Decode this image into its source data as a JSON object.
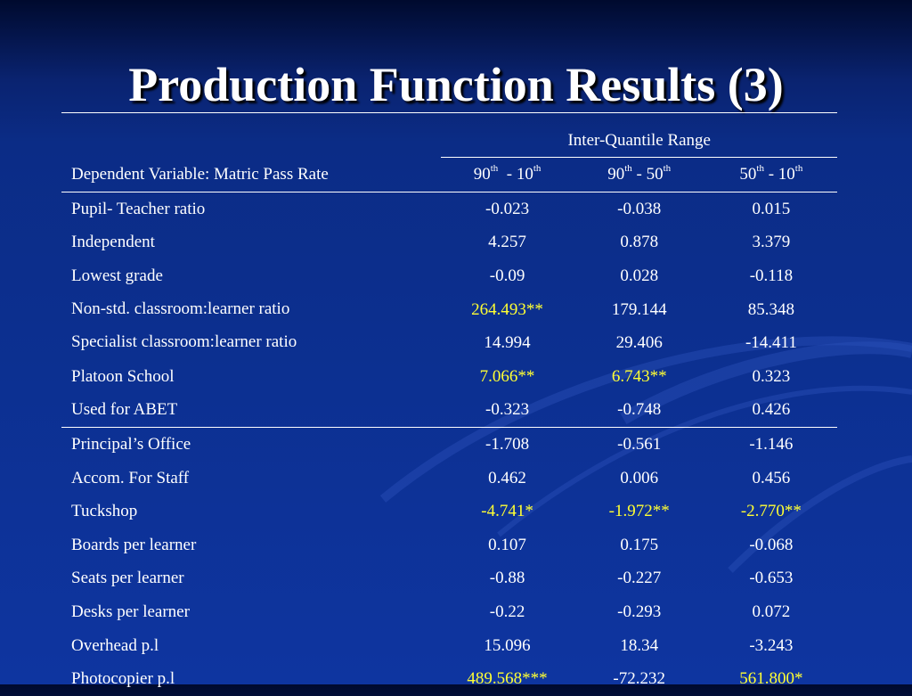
{
  "slide": {
    "title": "Production Function Results (3)"
  },
  "table": {
    "group_header": "Inter-Quantile Range",
    "dependent_label": "Dependent Variable: Matric Pass Rate",
    "columns": [
      {
        "a": "90",
        "a_sup": "th",
        "b": "10",
        "b_sup": "th"
      },
      {
        "a": "90",
        "a_sup": "th",
        "b": "50",
        "b_sup": "th"
      },
      {
        "a": "50",
        "a_sup": "th",
        "b": "10",
        "b_sup": "th"
      }
    ],
    "rows": [
      {
        "label": "Pupil- Teacher ratio",
        "values": [
          "-0.023",
          "-0.038",
          "0.015"
        ]
      },
      {
        "label": "Independent",
        "values": [
          "4.257",
          "0.878",
          "3.379"
        ]
      },
      {
        "label": "Lowest grade",
        "values": [
          "-0.09",
          "0.028",
          "-0.118"
        ]
      },
      {
        "label": "Non-std. classroom:learner ratio",
        "values": [
          "264.493**",
          "179.144",
          "85.348"
        ]
      },
      {
        "label": "Specialist classroom:learner ratio",
        "values": [
          "14.994",
          "29.406",
          "-14.411"
        ]
      },
      {
        "label": "Platoon School",
        "values": [
          "7.066**",
          "6.743**",
          "0.323"
        ]
      },
      {
        "label": "Used for ABET",
        "values": [
          "-0.323",
          "-0.748",
          "0.426"
        ]
      },
      {
        "label": "Principal’s Office",
        "values": [
          "-1.708",
          "-0.561",
          "-1.146"
        ]
      },
      {
        "label": "Accom. For Staff",
        "values": [
          "0.462",
          "0.006",
          "0.456"
        ]
      },
      {
        "label": "Tuckshop",
        "values": [
          "-4.741*",
          "-1.972**",
          "-2.770**"
        ]
      },
      {
        "label": "Boards per learner",
        "values": [
          "0.107",
          "0.175",
          "-0.068"
        ]
      },
      {
        "label": "Seats per learner",
        "values": [
          "-0.88",
          "-0.227",
          "-0.653"
        ]
      },
      {
        "label": "Desks per learner",
        "values": [
          "-0.22",
          "-0.293",
          "0.072"
        ]
      },
      {
        "label": "Overhead p.l",
        "values": [
          "15.096",
          "18.34",
          "-3.243"
        ]
      },
      {
        "label": "Photocopier p.l",
        "values": [
          "489.568***",
          "-72.232",
          "561.800*"
        ]
      }
    ]
  },
  "colors": {
    "background_top": "#000a2e",
    "background_bottom": "#0e35a0",
    "text": "#ffffff",
    "significant": "#ffff33"
  }
}
